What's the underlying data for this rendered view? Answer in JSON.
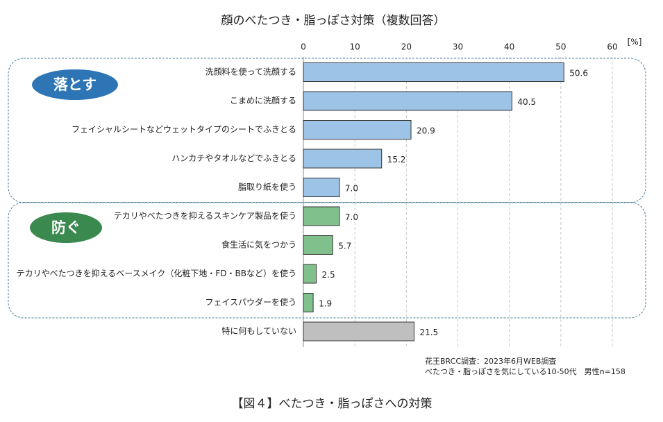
{
  "chart_data": {
    "type": "bar",
    "orientation": "horizontal",
    "title": "顔のべたつき・脂っぽさ対策（複数回答）",
    "unit_label": "[%]",
    "categories": [
      "洗顔料を使って洗顔する",
      "こまめに洗顔する",
      "フェイシャルシートなどウェットタイプのシートでふきとる",
      "ハンカチやタオルなどでふきとる",
      "脂取り紙を使う",
      "テカリやべたつきを抑えるスキンケア製品を使う",
      "食生活に気をつかう",
      "テカリやべたつきを抑えるベースメイク（化粧下地・FD・BBなど）を使う",
      "フェイスパウダーを使う",
      "特に何もしていない"
    ],
    "values": [
      50.6,
      40.5,
      20.9,
      15.2,
      7.0,
      7.0,
      5.7,
      2.5,
      1.9,
      21.5
    ],
    "value_labels": [
      "50.6",
      "40.5",
      "20.9",
      "15.2",
      "7.0",
      "7.0",
      "5.7",
      "2.5",
      "1.9",
      "21.5"
    ],
    "colors": [
      "#9dc3e6",
      "#9dc3e6",
      "#9dc3e6",
      "#9dc3e6",
      "#9dc3e6",
      "#7fc08c",
      "#7fc08c",
      "#7fc08c",
      "#7fc08c",
      "#bfbfbf"
    ],
    "groups": [
      {
        "label": "落とす",
        "color": "#2e75b6"
      },
      {
        "label": "防ぐ",
        "color": "#3a8a4f"
      }
    ],
    "xlim": [
      0,
      60
    ],
    "xticks": [
      0,
      10,
      20,
      30,
      40,
      50,
      60
    ],
    "grid": true,
    "source": [
      "花王BRCC調査：2023年6月WEB調査",
      "べたつき・脂っぽさを気にしている10-50代　男性n=158"
    ],
    "caption": "【図４】べたつき・脂っぽさへの対策"
  }
}
